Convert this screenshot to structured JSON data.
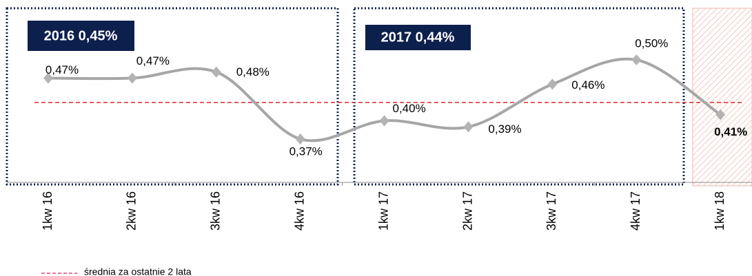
{
  "chart_data": {
    "type": "line",
    "categories": [
      "1kw 16",
      "2kw 16",
      "3kw 16",
      "4kw 16",
      "1kw 17",
      "2kw 17",
      "3kw 17",
      "4kw 17",
      "1kw 18"
    ],
    "series": [
      {
        "name": "",
        "color": "#a6a6a6",
        "values": [
          0.47,
          0.47,
          0.48,
          0.37,
          0.4,
          0.39,
          0.46,
          0.5,
          0.41
        ],
        "value_labels": [
          "0,47%",
          "0,47%",
          "0,48%",
          "0,37%",
          "0,40%",
          "0,39%",
          "0,46%",
          "0,50%",
          "0,41%"
        ]
      }
    ],
    "reference_line": {
      "name": "średnia za ostatnie 2 lata",
      "value": 0.43,
      "color": "#d62728"
    },
    "annotations": [
      "2016 0,45%",
      "2017 0,44%"
    ]
  }
}
